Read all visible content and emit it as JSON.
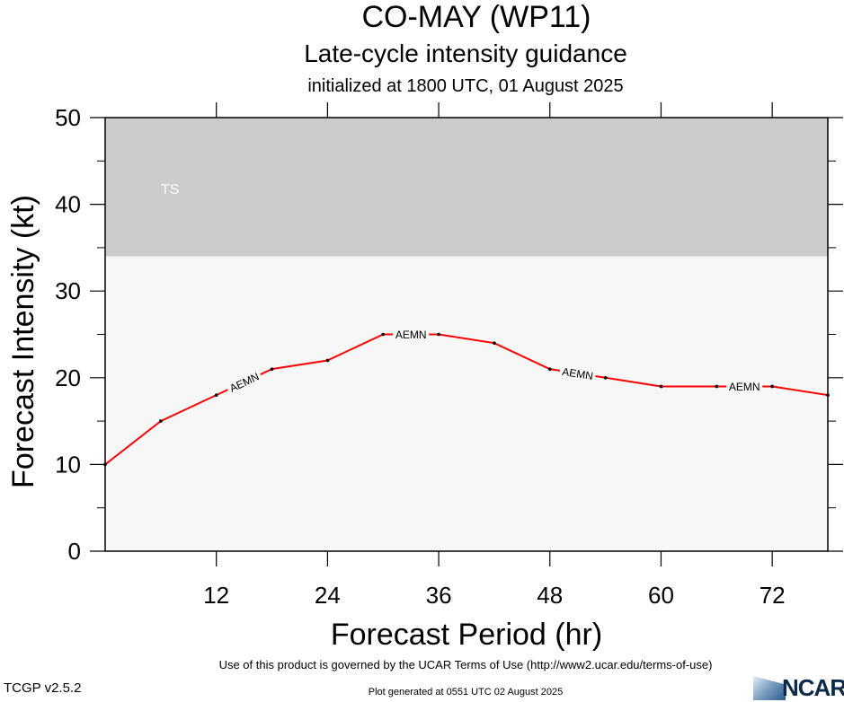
{
  "header": {
    "title": "CO-MAY (WP11)",
    "subtitle": "Late-cycle intensity guidance",
    "init": "initialized at 1800 UTC, 01 August 2025"
  },
  "footer": {
    "terms": "Use of this product is governed by the UCAR Terms of Use (http://www2.ucar.edu/terms-of-use)",
    "version": "TCGP v2.5.2",
    "generated": "Plot generated at 0551 UTC   02 August 2025",
    "logo_text": "NCAR"
  },
  "chart_data": {
    "type": "line",
    "title": "CO-MAY (WP11)",
    "subtitle": "Late-cycle intensity guidance",
    "xlabel": "Forecast Period (hr)",
    "ylabel": "Forecast Intensity (kt)",
    "xlim": [
      0,
      78
    ],
    "ylim": [
      0,
      50
    ],
    "xticks": [
      12,
      24,
      36,
      48,
      60,
      72
    ],
    "yticks": [
      0,
      10,
      20,
      30,
      40,
      50
    ],
    "bands": [
      {
        "label": "TS",
        "from": 34,
        "to": 50,
        "color": "#cccccc"
      },
      {
        "label": "",
        "from": 0,
        "to": 34,
        "color": "#f7f7f7"
      }
    ],
    "series": [
      {
        "name": "AEMN",
        "color": "#ff0000",
        "x": [
          0,
          6,
          12,
          18,
          24,
          30,
          36,
          42,
          48,
          54,
          60,
          66,
          72,
          78
        ],
        "y": [
          10,
          15,
          18,
          21,
          22,
          25,
          25,
          24,
          21,
          20,
          19,
          19,
          19,
          18
        ]
      }
    ]
  }
}
